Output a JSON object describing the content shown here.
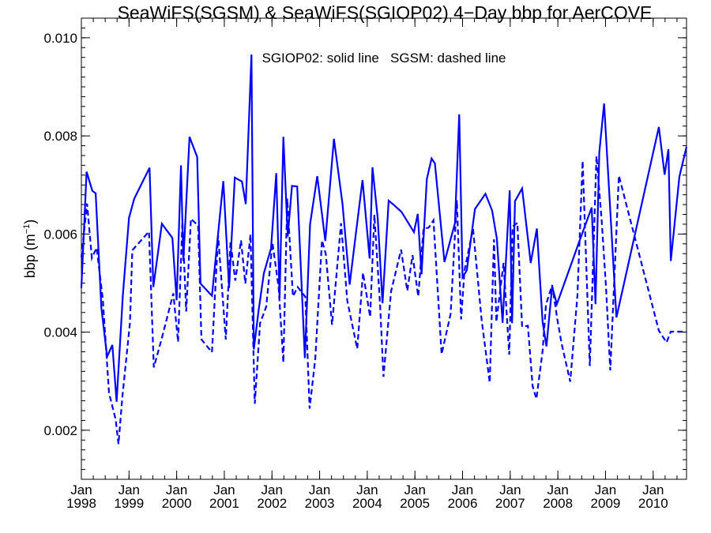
{
  "chart_data": {
    "type": "line",
    "title": "SeaWiFS(SGSM) & SeaWiFS(SGIOP02) 4−Day bbp for AerCOVE",
    "annotation": "SGIOP02: solid line   SGSM: dashed line",
    "ylabel": {
      "main": "bbp (m",
      "sup": "−1",
      "close": ")"
    },
    "xlabel": "",
    "xlim": [
      1998.0,
      2010.7
    ],
    "ylim": [
      0.001,
      0.0104
    ],
    "y_ticks": [
      0.002,
      0.004,
      0.006,
      0.008,
      0.01
    ],
    "y_tick_labels": [
      "0.002",
      "0.004",
      "0.006",
      "0.008",
      "0.010"
    ],
    "y_minor_step": 0.0002,
    "x_ticks": [
      {
        "x": 1998,
        "month": "Jan",
        "year": "1998"
      },
      {
        "x": 1999,
        "month": "Jan",
        "year": "1999"
      },
      {
        "x": 2000,
        "month": "Jan",
        "year": "2000"
      },
      {
        "x": 2001,
        "month": "Jan",
        "year": "2001"
      },
      {
        "x": 2002,
        "month": "Jan",
        "year": "2002"
      },
      {
        "x": 2003,
        "month": "Jan",
        "year": "2003"
      },
      {
        "x": 2004,
        "month": "Jan",
        "year": "2004"
      },
      {
        "x": 2005,
        "month": "Jan",
        "year": "2005"
      },
      {
        "x": 2006,
        "month": "Jan",
        "year": "2006"
      },
      {
        "x": 2007,
        "month": "Jan",
        "year": "2007"
      },
      {
        "x": 2008,
        "month": "Jan",
        "year": "2008"
      },
      {
        "x": 2009,
        "month": "Jan",
        "year": "2009"
      },
      {
        "x": 2010,
        "month": "Jan",
        "year": "2010"
      }
    ],
    "x_minor_step": 0.25,
    "grid": false,
    "legend": "none",
    "series": [
      {
        "color": "#0000ff",
        "style": "solid",
        "x": [
          1998.0,
          1998.11,
          1998.23,
          1998.3,
          1998.42,
          1998.54,
          1998.65,
          1998.74,
          1998.87,
          1999.0,
          1999.11,
          1999.43,
          1999.51,
          1999.69,
          1999.91,
          2000.0,
          2000.09,
          2000.14,
          2000.27,
          2000.43,
          2000.5,
          2000.74,
          2000.98,
          2001.1,
          2001.22,
          2001.37,
          2001.45,
          2001.57,
          2001.62,
          2001.72,
          2001.83,
          2001.98,
          2002.09,
          2002.16,
          2002.24,
          2002.33,
          2002.42,
          2002.53,
          2002.69,
          2002.8,
          2002.95,
          2003.12,
          2003.3,
          2003.48,
          2003.63,
          2003.76,
          2003.9,
          2004.05,
          2004.11,
          2004.22,
          2004.32,
          2004.45,
          2004.56,
          2004.72,
          2004.98,
          2005.06,
          2005.14,
          2005.25,
          2005.35,
          2005.42,
          2005.62,
          2005.84,
          2005.93,
          2006.0,
          2006.09,
          2006.26,
          2006.48,
          2006.62,
          2006.72,
          2006.84,
          2006.99,
          2007.04,
          2007.1,
          2007.25,
          2007.43,
          2007.56,
          2007.68,
          2007.76,
          2007.88,
          2007.98,
          2008.45,
          2008.71,
          2008.79,
          2008.87,
          2008.97,
          2009.23,
          2010.12,
          2010.24,
          2010.32,
          2010.37,
          2010.55,
          2010.7
        ],
        "y": [
          0.0049,
          0.00727,
          0.00688,
          0.00683,
          0.0045,
          0.0035,
          0.00374,
          0.00258,
          0.00475,
          0.00633,
          0.00672,
          0.00735,
          0.00492,
          0.00621,
          0.00592,
          0.00465,
          0.0074,
          0.00545,
          0.00798,
          0.00757,
          0.00499,
          0.00474,
          0.00708,
          0.0049,
          0.00715,
          0.00707,
          0.00661,
          0.00966,
          0.00365,
          0.00445,
          0.0052,
          0.00571,
          0.00724,
          0.0047,
          0.00798,
          0.00595,
          0.00698,
          0.00697,
          0.00347,
          0.0062,
          0.00718,
          0.00586,
          0.00794,
          0.00662,
          0.00497,
          0.006,
          0.0071,
          0.0055,
          0.00736,
          0.00631,
          0.00459,
          0.00668,
          0.00659,
          0.00645,
          0.00604,
          0.00641,
          0.00518,
          0.00712,
          0.00754,
          0.00744,
          0.00543,
          0.00622,
          0.00844,
          0.00512,
          0.00526,
          0.00651,
          0.00682,
          0.00648,
          0.00591,
          0.00419,
          0.00689,
          0.00418,
          0.00667,
          0.00693,
          0.00541,
          0.00611,
          0.00421,
          0.00371,
          0.00493,
          0.00457,
          0.00585,
          0.00654,
          0.00457,
          0.00766,
          0.00866,
          0.0043,
          0.00818,
          0.00721,
          0.00773,
          0.00545,
          0.00717,
          0.00778
        ]
      },
      {
        "color": "#0000ff",
        "style": "dashed",
        "x": [
          1998.0,
          1998.12,
          1998.22,
          1998.32,
          1998.45,
          1998.58,
          1998.72,
          1998.78,
          1998.86,
          1999.02,
          1999.07,
          1999.3,
          1999.42,
          1999.52,
          1999.69,
          1999.93,
          2000.03,
          2000.12,
          2000.2,
          2000.3,
          2000.45,
          2000.52,
          2000.74,
          2000.87,
          2001.03,
          2001.13,
          2001.23,
          2001.35,
          2001.44,
          2001.55,
          2001.64,
          2001.75,
          2001.88,
          2002.01,
          2002.14,
          2002.24,
          2002.32,
          2002.44,
          2002.54,
          2002.7,
          2002.79,
          2002.91,
          2003.05,
          2003.13,
          2003.26,
          2003.45,
          2003.58,
          2003.79,
          2003.91,
          2004.06,
          2004.15,
          2004.27,
          2004.34,
          2004.5,
          2004.71,
          2004.84,
          2004.95,
          2005.07,
          2005.18,
          2005.29,
          2005.39,
          2005.56,
          2005.75,
          2005.88,
          2005.97,
          2006.04,
          2006.22,
          2006.4,
          2006.57,
          2006.66,
          2006.71,
          2006.86,
          2006.98,
          2007.05,
          2007.15,
          2007.25,
          2007.37,
          2007.47,
          2007.55,
          2007.68,
          2007.75,
          2007.88,
          2008.0,
          2008.08,
          2008.26,
          2008.41,
          2008.52,
          2008.67,
          2008.81,
          2008.92,
          2009.01,
          2009.1,
          2009.28,
          2010.12,
          2010.28,
          2010.37,
          2010.46,
          2010.59,
          2010.7
        ],
        "y": [
          0.00552,
          0.00662,
          0.00551,
          0.00572,
          0.00468,
          0.00276,
          0.00222,
          0.00172,
          0.00268,
          0.00419,
          0.00567,
          0.00592,
          0.00605,
          0.00328,
          0.00388,
          0.00479,
          0.0038,
          0.00625,
          0.00442,
          0.00631,
          0.00617,
          0.00385,
          0.00359,
          0.00597,
          0.00385,
          0.00585,
          0.00505,
          0.00587,
          0.00499,
          0.00599,
          0.00254,
          0.00418,
          0.00452,
          0.00582,
          0.00491,
          0.00338,
          0.00672,
          0.00473,
          0.00492,
          0.00472,
          0.00244,
          0.00346,
          0.00587,
          0.00559,
          0.00415,
          0.00622,
          0.00464,
          0.00366,
          0.00521,
          0.00431,
          0.00639,
          0.00454,
          0.00309,
          0.00483,
          0.00568,
          0.00484,
          0.00557,
          0.00473,
          0.00611,
          0.00613,
          0.00628,
          0.00355,
          0.00437,
          0.00669,
          0.00426,
          0.00525,
          0.00611,
          0.00426,
          0.00297,
          0.00589,
          0.00421,
          0.00541,
          0.00354,
          0.00615,
          0.00623,
          0.00411,
          0.00413,
          0.0029,
          0.00264,
          0.00361,
          0.00456,
          0.00496,
          0.0042,
          0.00376,
          0.00299,
          0.00474,
          0.00749,
          0.00331,
          0.00759,
          0.00628,
          0.00492,
          0.00322,
          0.00719,
          0.00403,
          0.00379,
          0.00401,
          0.00401,
          0.00401,
          0.00401
        ]
      }
    ]
  }
}
